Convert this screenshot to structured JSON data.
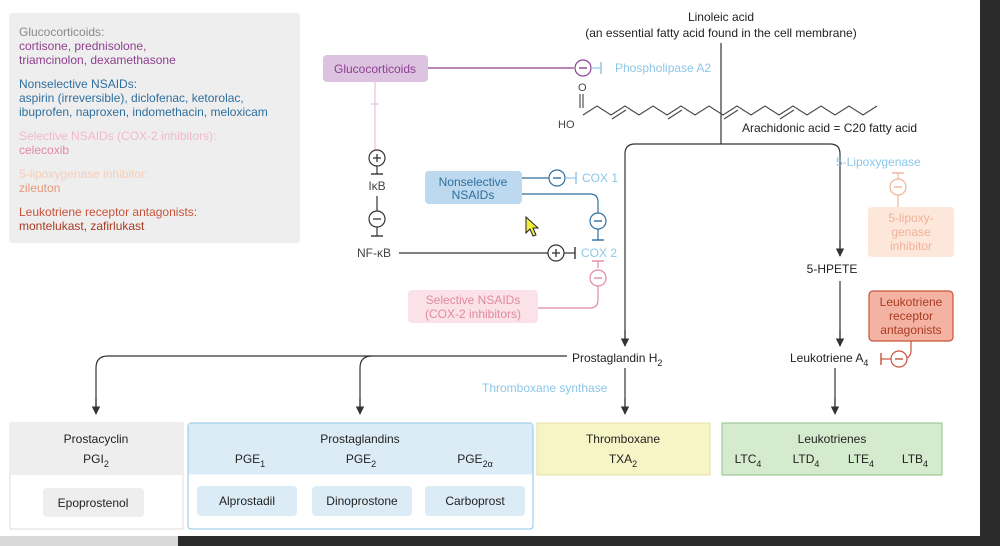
{
  "legend": {
    "glucocorticoids_head": "Glucocorticoids:",
    "glucocorticoids_line1": "cortisone, prednisolone,",
    "glucocorticoids_line2": "triamcinolon, dexamethasone",
    "nsaids_head": "Nonselective NSAIDs:",
    "nsaids_line1": "aspirin (irreversible), diclofenac, ketorolac,",
    "nsaids_line2": "ibuprofen, naproxen, indomethacin, meloxicam",
    "cox2_head": "Selective NSAIDs (COX-2 inhibitors):",
    "cox2_line1": "celecoxib",
    "lipox_head": "5-lipoxygenase inhibitor:",
    "lipox_line1": "zileuton",
    "ltra_head": "Leukotriene receptor antagonists:",
    "ltra_line1": "montelukast, zafirlukast"
  },
  "nodes": {
    "linoleic_line1": "Linoleic acid",
    "linoleic_line2": "(an essential fatty acid found in the cell membrane)",
    "phospholipase": "Phospholipase A2",
    "arachidonic": "Arachidonic acid = C20 fatty acid",
    "carbonyl_o": "O",
    "hydroxyl": "HO",
    "glucocorticoids": "Glucocorticoids",
    "ikb": "IκB",
    "nfkb": "NF-κB",
    "nsaids_line1": "Nonselective",
    "nsaids_line2": "NSAIDs",
    "cox1": "COX 1",
    "cox2": "COX 2",
    "sel_line1": "Selective NSAIDs",
    "sel_line2": "(COX-2 inhibitors)",
    "lipoxygenase": "5-Lipoxygenase",
    "lipox_inh_line1": "5-lipoxy-",
    "lipox_inh_line2": "genase",
    "lipox_inh_line3": "inhibitor",
    "hpete": "5-HPETE",
    "ltra_line1": "Leukotriene",
    "ltra_line2": "receptor",
    "ltra_line3": "antagonists",
    "pgh2": "Prostaglandin H",
    "pgh2_sub": "2",
    "lta4": "Leukotriene A",
    "lta4_sub": "4",
    "txsynthase": "Thromboxane synthase",
    "minus": "−",
    "plus": "+"
  },
  "boxes": {
    "prostacyclin_title": "Prostacyclin",
    "prostacyclin_sub": "PGI",
    "prostacyclin_sub_idx": "2",
    "prostacyclin_drug": "Epoprostenol",
    "prostaglandins_title": "Prostaglandins",
    "pge1": "PGE",
    "pge1_idx": "1",
    "pge2": "PGE",
    "pge2_idx": "2",
    "pge2a": "PGE",
    "pge2a_idx": "2α",
    "drug1": "Alprostadil",
    "drug2": "Dinoprostone",
    "drug3": "Carboprost",
    "thromboxane_title": "Thromboxane",
    "txa": "TXA",
    "txa_idx": "2",
    "leukotrienes_title": "Leukotrienes",
    "ltc": "LTC",
    "ltc_idx": "4",
    "ltd": "LTD",
    "ltd_idx": "4",
    "lte": "LTE",
    "lte_idx": "4",
    "ltb": "LTB",
    "ltb_idx": "4"
  },
  "colors": {
    "glucocorticoid": "#8e3f8f",
    "nsaid": "#2f6f9e",
    "cox2": "#e08aa3",
    "lipox": "#f0b39a",
    "ltra": "#c9533a",
    "enzyme": "#8cc6e8",
    "line": "#333333"
  }
}
